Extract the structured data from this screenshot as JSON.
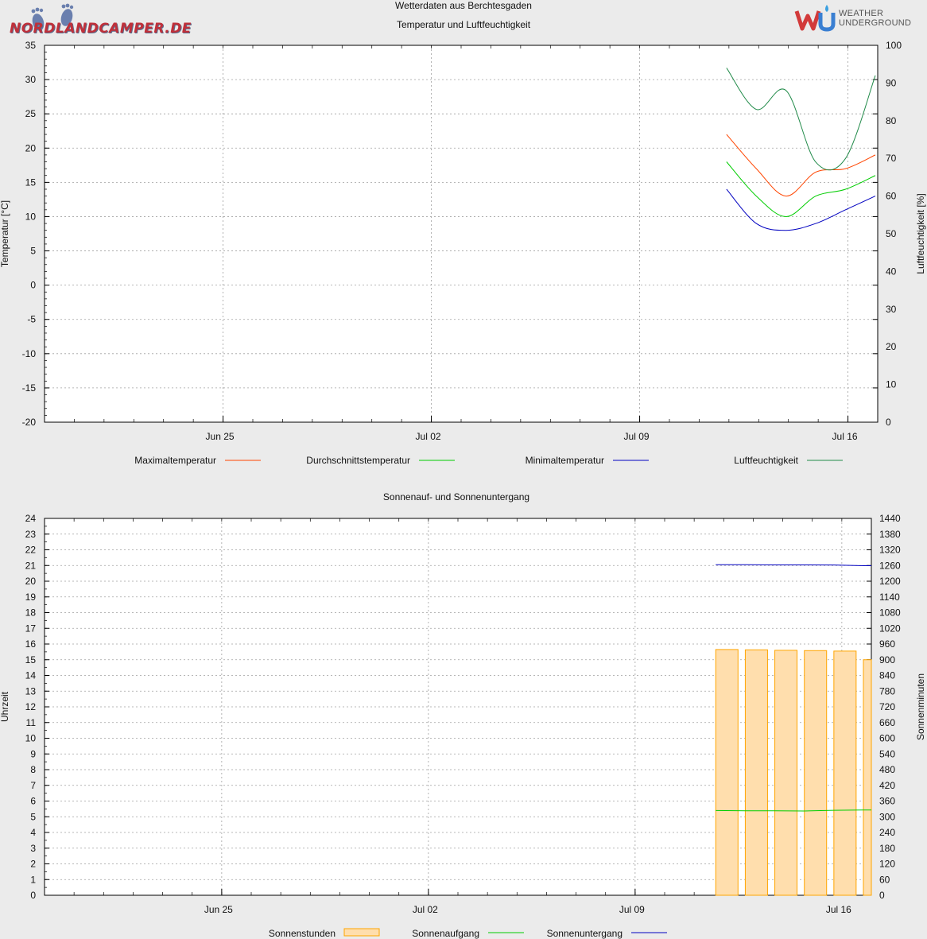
{
  "header": {
    "title": "Wetterdaten aus Berchtesgaden",
    "logo_left": "NORDLANDCAMPER.DE",
    "logo_right_line1": "WEATHER",
    "logo_right_line2": "UNDERGROUND"
  },
  "colors": {
    "max": "#ff4500",
    "avg": "#00cd00",
    "min": "#0000c0",
    "humidity": "#228b4a",
    "bar_fill": "#ffdead",
    "bar_stroke": "#ffa500",
    "grid": "#a0a0a0",
    "plot_bg": "#ffffff"
  },
  "chart_data": [
    {
      "type": "line",
      "title": "Temperatur und Luftfeuchtigkeit",
      "xlabel": "",
      "ylabel": "Temperatur [°C]",
      "y2label": "Luftfeuchtigkeit [%]",
      "xlim": [
        "2023-06-19",
        "2023-07-17"
      ],
      "ylim": [
        -20,
        35
      ],
      "y2lim": [
        0,
        100
      ],
      "xticks": [
        "Jun 25",
        "Jul 02",
        "Jul 09",
        "Jul 16"
      ],
      "yticks": [
        -20,
        -15,
        -10,
        -5,
        0,
        5,
        10,
        15,
        20,
        25,
        30,
        35
      ],
      "y2ticks": [
        0,
        10,
        20,
        30,
        40,
        50,
        60,
        70,
        80,
        90,
        100
      ],
      "grid": true,
      "legend_position": "bottom",
      "x": [
        "2023-07-12",
        "2023-07-13",
        "2023-07-14",
        "2023-07-15",
        "2023-07-16",
        "2023-07-17"
      ],
      "series": [
        {
          "name": "Maximaltemperatur",
          "axis": "left",
          "values": [
            22,
            17,
            13,
            16.5,
            17,
            19
          ]
        },
        {
          "name": "Durchschnittstemperatur",
          "axis": "left",
          "values": [
            18,
            13,
            10,
            13,
            14,
            16
          ]
        },
        {
          "name": "Minimaltemperatur",
          "axis": "left",
          "values": [
            14,
            9,
            8,
            9,
            11,
            13
          ]
        },
        {
          "name": "Luftfeuchtigkeit",
          "axis": "right",
          "values": [
            94,
            83,
            88,
            69,
            70,
            92
          ]
        }
      ]
    },
    {
      "type": "bar",
      "title": "Sonnenauf- und Sonnenuntergang",
      "xlabel": "",
      "ylabel": "Uhrzeit",
      "y2label": "Sonnenminuten",
      "xlim": [
        "2023-06-19",
        "2023-07-17"
      ],
      "ylim": [
        0,
        24
      ],
      "y2lim": [
        0,
        1440
      ],
      "xticks": [
        "Jun 25",
        "Jul 02",
        "Jul 09",
        "Jul 16"
      ],
      "yticks": [
        0,
        1,
        2,
        3,
        4,
        5,
        6,
        7,
        8,
        9,
        10,
        11,
        12,
        13,
        14,
        15,
        16,
        17,
        18,
        19,
        20,
        21,
        22,
        23,
        24
      ],
      "y2ticks": [
        0,
        60,
        120,
        180,
        240,
        300,
        360,
        420,
        480,
        540,
        600,
        660,
        720,
        780,
        840,
        900,
        960,
        1020,
        1080,
        1140,
        1200,
        1260,
        1320,
        1380,
        1440
      ],
      "grid": true,
      "legend_position": "bottom",
      "x": [
        "2023-07-12",
        "2023-07-13",
        "2023-07-14",
        "2023-07-15",
        "2023-07-16",
        "2023-07-17"
      ],
      "series": [
        {
          "name": "Sonnenstunden",
          "kind": "bar",
          "values": [
            15.65,
            15.63,
            15.6,
            15.58,
            15.55,
            15.0
          ]
        },
        {
          "name": "Sonnenaufgang",
          "kind": "line",
          "values": [
            5.4,
            5.38,
            5.38,
            5.37,
            5.41,
            5.43
          ]
        },
        {
          "name": "Sonnenuntergang",
          "kind": "line",
          "values": [
            21.05,
            21.05,
            21.04,
            21.04,
            21.03,
            20.99
          ]
        }
      ]
    }
  ]
}
